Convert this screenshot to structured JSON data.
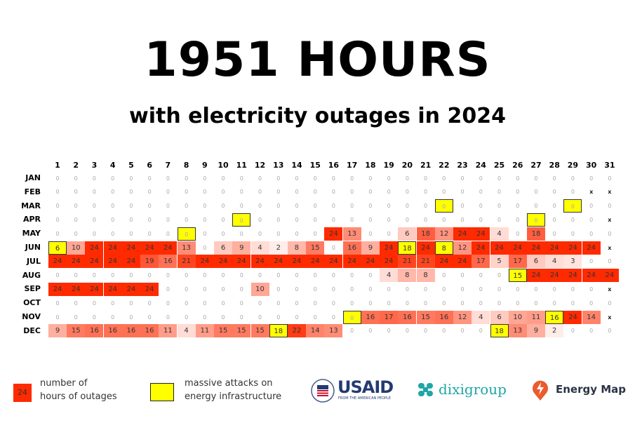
{
  "header": {
    "title": "1951 HOURS",
    "subtitle": "with electricity outages in 2024"
  },
  "legend": {
    "sample_value": "24",
    "outage_label_1": "number of",
    "outage_label_2": "hours of outages",
    "attack_label_1": "massive attacks on",
    "attack_label_2": "energy infrastructure"
  },
  "logos": {
    "usaid": "USAID",
    "usaid_tag": "FROM THE AMERICAN PEOPLE",
    "dixi": "dixigroup",
    "energymap": "Energy Map"
  },
  "colors": {
    "max": "#ff2a00",
    "highlight": "#ffff00"
  },
  "chart_data": {
    "type": "heatmap",
    "title": "1951 HOURS with electricity outages in 2024",
    "x": [
      "1",
      "2",
      "3",
      "4",
      "5",
      "6",
      "7",
      "8",
      "9",
      "10",
      "11",
      "12",
      "13",
      "14",
      "15",
      "16",
      "17",
      "18",
      "19",
      "20",
      "21",
      "22",
      "23",
      "24",
      "25",
      "26",
      "27",
      "28",
      "29",
      "30",
      "31"
    ],
    "y": [
      "JAN",
      "FEB",
      "MAR",
      "APR",
      "MAY",
      "JUN",
      "JUL",
      "AUG",
      "SEP",
      "OCT",
      "NOV",
      "DEC"
    ],
    "value_range": [
      0,
      24
    ],
    "values": [
      [
        0,
        0,
        0,
        0,
        0,
        0,
        0,
        0,
        0,
        0,
        0,
        0,
        0,
        0,
        0,
        0,
        0,
        0,
        0,
        0,
        0,
        0,
        0,
        0,
        0,
        0,
        0,
        0,
        0,
        0,
        0
      ],
      [
        0,
        0,
        0,
        0,
        0,
        0,
        0,
        0,
        0,
        0,
        0,
        0,
        0,
        0,
        0,
        0,
        0,
        0,
        0,
        0,
        0,
        0,
        0,
        0,
        0,
        0,
        0,
        0,
        0,
        "x",
        "x"
      ],
      [
        0,
        0,
        0,
        0,
        0,
        0,
        0,
        0,
        0,
        0,
        0,
        0,
        0,
        0,
        0,
        0,
        0,
        0,
        0,
        0,
        0,
        0,
        0,
        0,
        0,
        0,
        0,
        0,
        0,
        0,
        0
      ],
      [
        0,
        0,
        0,
        0,
        0,
        0,
        0,
        0,
        0,
        0,
        0,
        0,
        0,
        0,
        0,
        0,
        0,
        0,
        0,
        0,
        0,
        0,
        0,
        0,
        0,
        0,
        0,
        0,
        0,
        0,
        "x"
      ],
      [
        0,
        0,
        0,
        0,
        0,
        0,
        0,
        0,
        0,
        0,
        0,
        0,
        0,
        0,
        0,
        24,
        13,
        0,
        0,
        6,
        18,
        12,
        24,
        24,
        4,
        0,
        18,
        0,
        0,
        0,
        0
      ],
      [
        6,
        10,
        24,
        24,
        24,
        24,
        24,
        13,
        0,
        6,
        9,
        4,
        2,
        8,
        15,
        0,
        16,
        9,
        24,
        18,
        24,
        8,
        12,
        24,
        24,
        24,
        24,
        24,
        24,
        24,
        "x"
      ],
      [
        24,
        24,
        24,
        24,
        24,
        19,
        16,
        21,
        24,
        24,
        24,
        24,
        24,
        24,
        24,
        24,
        24,
        24,
        24,
        21,
        21,
        24,
        24,
        17,
        5,
        17,
        6,
        4,
        3,
        0,
        0
      ],
      [
        0,
        0,
        0,
        0,
        0,
        0,
        0,
        0,
        0,
        0,
        0,
        0,
        0,
        0,
        0,
        0,
        0,
        0,
        4,
        8,
        8,
        0,
        0,
        0,
        0,
        15,
        24,
        24,
        24,
        24,
        24
      ],
      [
        24,
        24,
        24,
        24,
        24,
        24,
        0,
        0,
        0,
        0,
        0,
        10,
        0,
        0,
        0,
        0,
        0,
        0,
        0,
        0,
        0,
        0,
        0,
        0,
        0,
        0,
        0,
        0,
        0,
        0,
        "x"
      ],
      [
        0,
        0,
        0,
        0,
        0,
        0,
        0,
        0,
        0,
        0,
        0,
        0,
        0,
        0,
        0,
        0,
        0,
        0,
        0,
        0,
        0,
        0,
        0,
        0,
        0,
        0,
        0,
        0,
        0,
        0,
        0
      ],
      [
        0,
        0,
        0,
        0,
        0,
        0,
        0,
        0,
        0,
        0,
        0,
        0,
        0,
        0,
        0,
        0,
        0,
        16,
        17,
        16,
        15,
        16,
        12,
        4,
        6,
        10,
        11,
        16,
        24,
        14,
        "x"
      ],
      [
        9,
        15,
        16,
        16,
        16,
        16,
        11,
        4,
        11,
        15,
        15,
        15,
        18,
        22,
        14,
        13,
        0,
        0,
        0,
        0,
        0,
        0,
        0,
        0,
        18,
        13,
        9,
        2,
        0,
        0,
        0
      ]
    ],
    "attack_days": [
      [
        "MAR",
        22
      ],
      [
        "MAR",
        29
      ],
      [
        "APR",
        11
      ],
      [
        "APR",
        27
      ],
      [
        "MAY",
        8
      ],
      [
        "JUN",
        1
      ],
      [
        "JUN",
        20
      ],
      [
        "JUN",
        22
      ],
      [
        "AUG",
        26
      ],
      [
        "NOV",
        17
      ],
      [
        "NOV",
        28
      ],
      [
        "DEC",
        13
      ],
      [
        "DEC",
        25
      ]
    ]
  }
}
